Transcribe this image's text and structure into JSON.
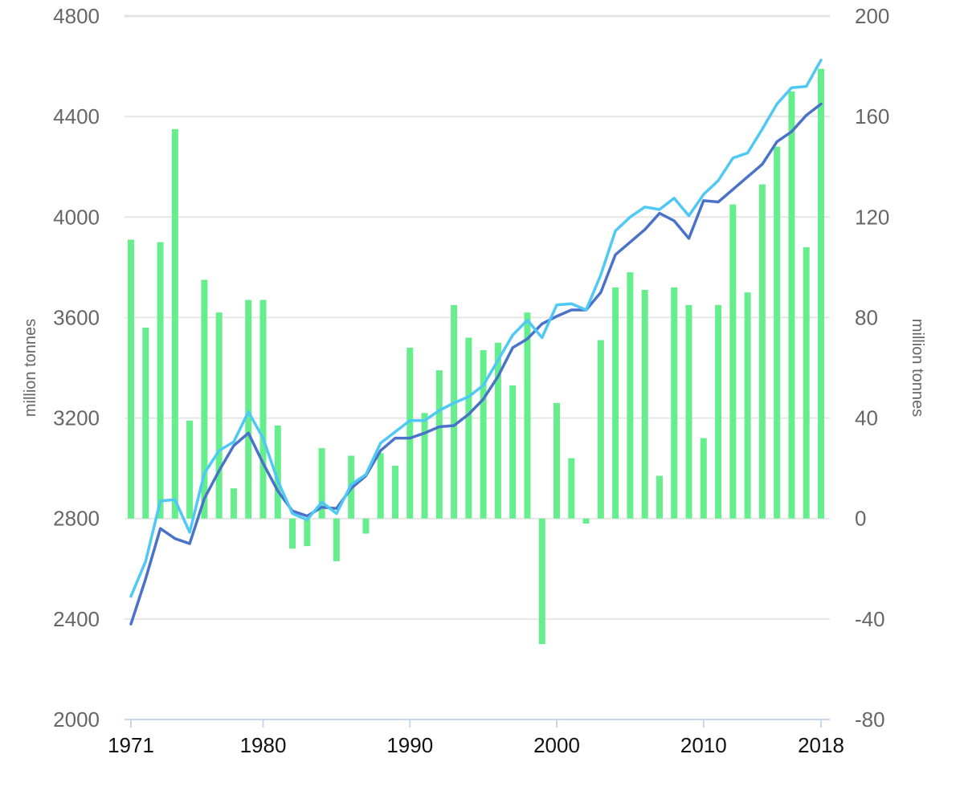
{
  "chart_data": {
    "type": "bar+line",
    "title": "",
    "x": [
      1971,
      1972,
      1973,
      1974,
      1975,
      1976,
      1977,
      1978,
      1979,
      1980,
      1981,
      1982,
      1983,
      1984,
      1985,
      1986,
      1987,
      1988,
      1989,
      1990,
      1991,
      1992,
      1993,
      1994,
      1995,
      1996,
      1997,
      1998,
      1999,
      2000,
      2001,
      2002,
      2003,
      2004,
      2005,
      2006,
      2007,
      2008,
      2009,
      2010,
      2011,
      2012,
      2013,
      2014,
      2015,
      2016,
      2017,
      2018
    ],
    "x_tick_labels": [
      "1971",
      "1980",
      "1990",
      "2000",
      "2010",
      "2018"
    ],
    "left_axis": {
      "label": "million tonnes",
      "range": [
        2000,
        4800
      ],
      "ticks": [
        2000,
        2400,
        2800,
        3200,
        3600,
        4000,
        4400,
        4800
      ]
    },
    "right_axis": {
      "label": "million tonnes",
      "range": [
        -80,
        200
      ],
      "ticks": [
        -80,
        -40,
        0,
        40,
        80,
        120,
        160,
        200
      ]
    },
    "grid": true,
    "series": [
      {
        "kind": "bar",
        "axis": "right",
        "color": "#66ee8c",
        "values": [
          111,
          76,
          110,
          155,
          39,
          95,
          82,
          12,
          87,
          87,
          37,
          -12,
          -11,
          28,
          -17,
          25,
          -6,
          26,
          21,
          68,
          42,
          59,
          85,
          72,
          67,
          70,
          53,
          82,
          -50,
          46,
          24,
          -2,
          71,
          92,
          98,
          91,
          17,
          92,
          85,
          32,
          85,
          125,
          90,
          133,
          148,
          170,
          108,
          179
        ]
      },
      {
        "kind": "line",
        "axis": "left",
        "color": "#4a72c8",
        "values": [
          2380,
          2560,
          2760,
          2720,
          2700,
          2880,
          2990,
          3090,
          3140,
          3020,
          2910,
          2830,
          2810,
          2845,
          2840,
          2920,
          2970,
          3070,
          3120,
          3120,
          3140,
          3165,
          3170,
          3215,
          3275,
          3365,
          3480,
          3515,
          3575,
          3605,
          3630,
          3630,
          3700,
          3850,
          3900,
          3950,
          4015,
          3985,
          3915,
          4065,
          4060,
          4110,
          4160,
          4210,
          4300,
          4340,
          4405,
          4450
        ]
      },
      {
        "kind": "line",
        "axis": "left",
        "color": "#4fc8f5",
        "values": [
          2490,
          2630,
          2870,
          2875,
          2745,
          2980,
          3070,
          3105,
          3225,
          3120,
          2950,
          2820,
          2795,
          2865,
          2820,
          2935,
          2975,
          3100,
          3145,
          3190,
          3190,
          3230,
          3260,
          3285,
          3330,
          3430,
          3530,
          3590,
          3520,
          3650,
          3655,
          3630,
          3770,
          3945,
          4000,
          4040,
          4030,
          4075,
          4005,
          4090,
          4145,
          4235,
          4255,
          4350,
          4450,
          4515,
          4520,
          4625
        ]
      }
    ]
  }
}
